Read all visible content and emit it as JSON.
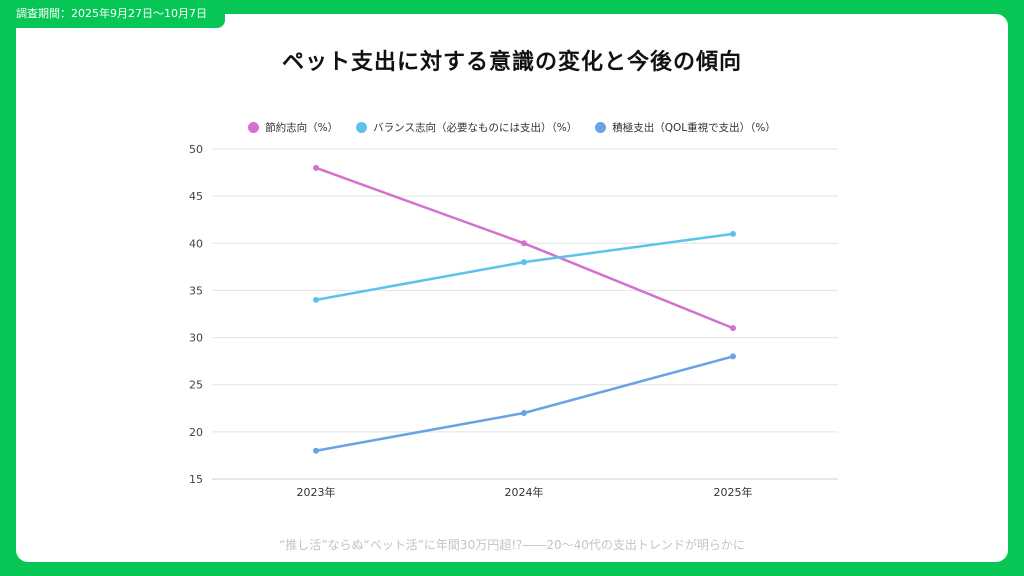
{
  "header_tab": {
    "label": "調査期間：2025年9月27日〜10月7日"
  },
  "title": "ペット支出に対する意識の変化と今後の傾向",
  "footer": "“推し活”ならぬ“ペット活”に年間30万円超!?――20〜40代の支出トレンドが明らかに",
  "chart_data": {
    "type": "line",
    "title": "ペット支出に対する意識の変化と今後の傾向",
    "xlabel": "",
    "ylabel": "",
    "categories": [
      "2023年",
      "2024年",
      "2025年"
    ],
    "ylim": [
      15,
      50
    ],
    "yticks": [
      15,
      20,
      25,
      30,
      35,
      40,
      45,
      50
    ],
    "grid": true,
    "legend_position": "top-center",
    "series": [
      {
        "name": "節約志向（%）",
        "color": "#d56fd0",
        "values": [
          48,
          40,
          31
        ]
      },
      {
        "name": "バランス志向（必要なものには支出）（%）",
        "color": "#5bc3ea",
        "values": [
          34,
          38,
          41
        ]
      },
      {
        "name": "積極支出（QOL重視で支出）（%）",
        "color": "#6aa2e6",
        "values": [
          18,
          22,
          28
        ]
      }
    ]
  }
}
